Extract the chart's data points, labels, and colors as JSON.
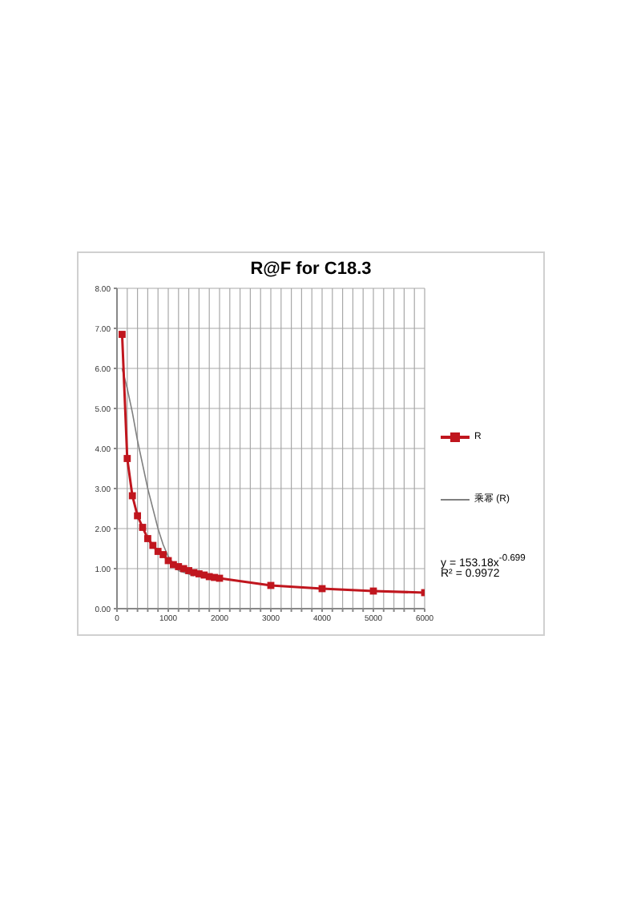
{
  "chart_data": {
    "type": "line",
    "title": "R@F  for C18.3",
    "series": [
      {
        "name": "R",
        "color": "#c0161e",
        "marker": "square",
        "x": [
          100,
          200,
          300,
          400,
          500,
          600,
          700,
          800,
          900,
          1000,
          1100,
          1200,
          1300,
          1400,
          1500,
          1600,
          1700,
          1800,
          1900,
          2000,
          3000,
          4000,
          5000,
          6000
        ],
        "values": [
          6.85,
          3.75,
          2.82,
          2.32,
          2.03,
          1.75,
          1.58,
          1.43,
          1.35,
          1.2,
          1.1,
          1.05,
          1.0,
          0.95,
          0.9,
          0.87,
          0.84,
          0.8,
          0.78,
          0.76,
          0.58,
          0.5,
          0.44,
          0.4
        ]
      },
      {
        "name": "乘幂 (R)",
        "color": "#808080",
        "marker": "none",
        "x": [
          100,
          200,
          300,
          400,
          500,
          600,
          700,
          800,
          900,
          1000,
          1200,
          1500
        ],
        "values": [
          6.0,
          5.5,
          4.9,
          4.2,
          3.6,
          3.0,
          2.5,
          2.0,
          1.6,
          1.3,
          0.95,
          0.82
        ]
      }
    ],
    "xlim": [
      0,
      6000
    ],
    "xticks": [
      0,
      {
        "value": 200,
        "label": null
      },
      {
        "value": 400,
        "label": null
      },
      {
        "value": 600,
        "label": null
      },
      {
        "value": 800,
        "label": null
      },
      1000,
      {
        "value": 1200,
        "label": null
      },
      {
        "value": 1400,
        "label": null
      },
      {
        "value": 1600,
        "label": null
      },
      {
        "value": 1800,
        "label": null
      },
      2000,
      {
        "value": 2200,
        "label": null
      },
      {
        "value": 2400,
        "label": null
      },
      {
        "value": 2600,
        "label": null
      },
      {
        "value": 2800,
        "label": null
      },
      3000,
      {
        "value": 3200,
        "label": null
      },
      {
        "value": 3400,
        "label": null
      },
      {
        "value": 3600,
        "label": null
      },
      {
        "value": 3800,
        "label": null
      },
      4000,
      {
        "value": 4200,
        "label": null
      },
      {
        "value": 4400,
        "label": null
      },
      {
        "value": 4600,
        "label": null
      },
      {
        "value": 4800,
        "label": null
      },
      5000,
      {
        "value": 5200,
        "label": null
      },
      {
        "value": 5400,
        "label": null
      },
      {
        "value": 5600,
        "label": null
      },
      {
        "value": 5800,
        "label": null
      },
      6000
    ],
    "ylim": [
      0,
      8
    ],
    "yticks": [
      {
        "value": 0,
        "label": "0.00"
      },
      {
        "value": 1,
        "label": "1.00"
      },
      {
        "value": 2,
        "label": "2.00"
      },
      {
        "value": 3,
        "label": "3.00"
      },
      {
        "value": 4,
        "label": "4.00"
      },
      {
        "value": 5,
        "label": "5.00"
      },
      {
        "value": 6,
        "label": "6.00"
      },
      {
        "value": 7,
        "label": "7.00"
      },
      {
        "value": 8,
        "label": "8.00"
      }
    ],
    "grid": true,
    "legend": "right",
    "line_style": "solid",
    "annotations": [
      "y = 153.18x$^{-0.699}$",
      "R² = 0.9972"
    ]
  }
}
